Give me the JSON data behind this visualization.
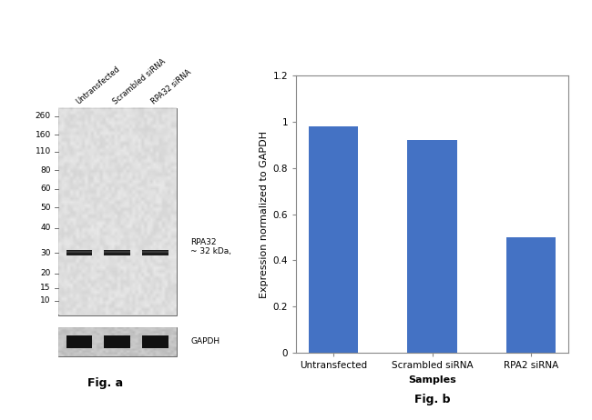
{
  "bar_categories": [
    "Untransfected",
    "Scrambled siRNA",
    "RPA2 siRNA"
  ],
  "bar_values": [
    0.98,
    0.92,
    0.5
  ],
  "bar_color": "#4472C4",
  "ylabel": "Expression normalized to GAPDH",
  "xlabel": "Samples",
  "ylim": [
    0,
    1.2
  ],
  "yticks": [
    0,
    0.2,
    0.4,
    0.6,
    0.8,
    1.0,
    1.2
  ],
  "fig_a_label": "Fig. a",
  "fig_b_label": "Fig. b",
  "wb_marker_labels": [
    "260",
    "160",
    "110",
    "80",
    "60",
    "50",
    "40",
    "30",
    "20",
    "15",
    "10"
  ],
  "wb_band_label": "RPA32\n~ 32 kDa,",
  "wb_gapdh_label": "GAPDH",
  "wb_sample_labels": [
    "Untransfected",
    "Scrambled siRNA",
    "RPA32 siRNA"
  ],
  "background_color": "#ffffff",
  "axis_label_fontsize": 8,
  "tick_label_fontsize": 7.5,
  "fig_label_fontsize": 9,
  "bar_width": 0.5
}
